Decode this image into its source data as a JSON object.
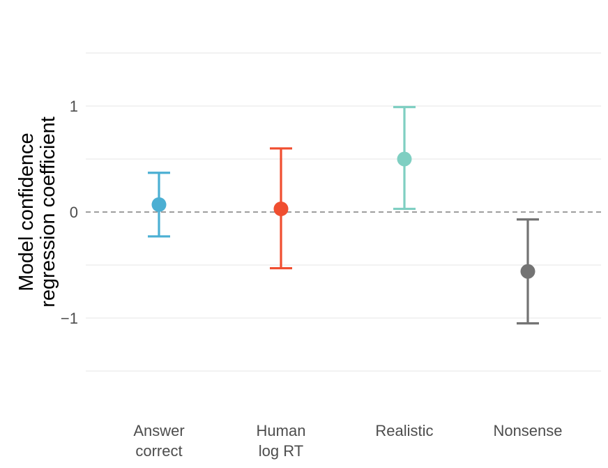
{
  "chart_data": {
    "type": "scatter",
    "title": "",
    "xlabel": "",
    "ylabel_lines": [
      "Model confidence",
      "regression coefficient"
    ],
    "ylim": [
      -1.5,
      1.5
    ],
    "yticks": [
      {
        "value": 1,
        "label": "1"
      },
      {
        "value": 0,
        "label": "0"
      },
      {
        "value": -1,
        "label": "−1"
      }
    ],
    "minor_grid": [
      1.5,
      0.5,
      -0.5,
      -1.5
    ],
    "reference_line": 0,
    "grid": true,
    "legend": "none",
    "categories": [
      {
        "label_lines": [
          "Answer",
          "correct"
        ],
        "estimate": 0.07,
        "lower": -0.23,
        "upper": 0.37,
        "color": "#4bafd3"
      },
      {
        "label_lines": [
          "Human",
          "log RT"
        ],
        "estimate": 0.03,
        "lower": -0.53,
        "upper": 0.6,
        "color": "#f04e30"
      },
      {
        "label_lines": [
          "Realistic"
        ],
        "estimate": 0.5,
        "lower": 0.03,
        "upper": 0.99,
        "color": "#7fcfc2"
      },
      {
        "label_lines": [
          "Nonsense"
        ],
        "estimate": -0.56,
        "lower": -1.05,
        "upper": -0.07,
        "color": "#737373"
      }
    ]
  }
}
